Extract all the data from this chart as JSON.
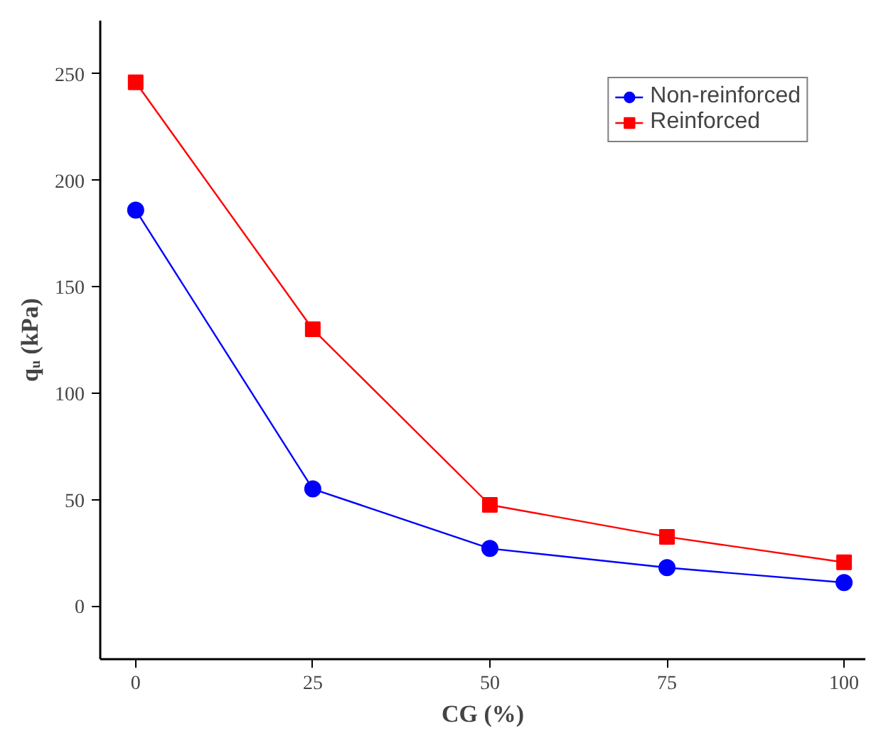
{
  "chart_data": {
    "type": "line",
    "xlabel": "CG (%)",
    "ylabel": "qᵤ (kPa)",
    "x": [
      0,
      25,
      50,
      75,
      100
    ],
    "series": [
      {
        "name": "Non-reinforced",
        "color": "#0000ff",
        "marker": "circle",
        "values": [
          186,
          55,
          27,
          18,
          11
        ]
      },
      {
        "name": "Reinforced",
        "color": "#ff0000",
        "marker": "square",
        "values": [
          246,
          130,
          47.5,
          32.5,
          20.5
        ]
      }
    ],
    "xlim": [
      -5,
      103
    ],
    "ylim": [
      -25,
      275
    ],
    "xticks": [
      0,
      25,
      50,
      75,
      100
    ],
    "yticks": [
      0,
      50,
      100,
      150,
      200,
      250
    ],
    "grid": false,
    "legend": "top right",
    "line_style": "solid"
  }
}
